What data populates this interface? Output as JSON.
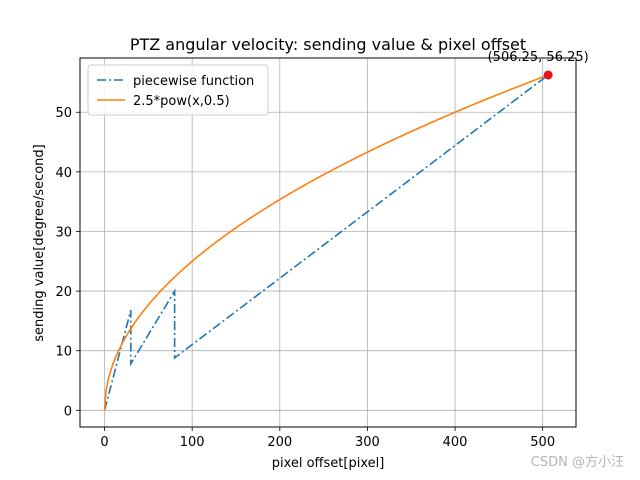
{
  "chart_data": {
    "type": "line",
    "title": "PTZ angular velocity: sending value & pixel offset",
    "xlabel": "pixel offset[pixel]",
    "ylabel": "sending value[degree/second]",
    "xlim": [
      -28,
      538
    ],
    "ylim": [
      -2.8,
      59.1
    ],
    "xticks": [
      0,
      100,
      200,
      300,
      400,
      500
    ],
    "yticks": [
      0,
      10,
      20,
      30,
      40,
      50
    ],
    "grid": true,
    "legend_position": "top-left",
    "series": [
      {
        "name": "piecewise function",
        "style": "dashdot",
        "color": "#1f77b4",
        "points": [
          [
            0,
            0
          ],
          [
            30,
            16.8
          ],
          [
            30,
            7.8
          ],
          [
            80,
            20.0
          ],
          [
            80,
            8.8
          ],
          [
            506.25,
            56.25
          ]
        ]
      },
      {
        "name": "2.5*pow(x,0.5)",
        "style": "solid",
        "color": "#ff7f0e",
        "function": "2.5*pow(x,0.5)",
        "x_range": [
          0,
          506.25
        ]
      }
    ],
    "annotations": [
      {
        "label": "(506.25, 56.25)",
        "x": 506.25,
        "y": 56.25,
        "marker_color": "#e8141c"
      }
    ]
  },
  "watermark": "CSDN @方小汪"
}
